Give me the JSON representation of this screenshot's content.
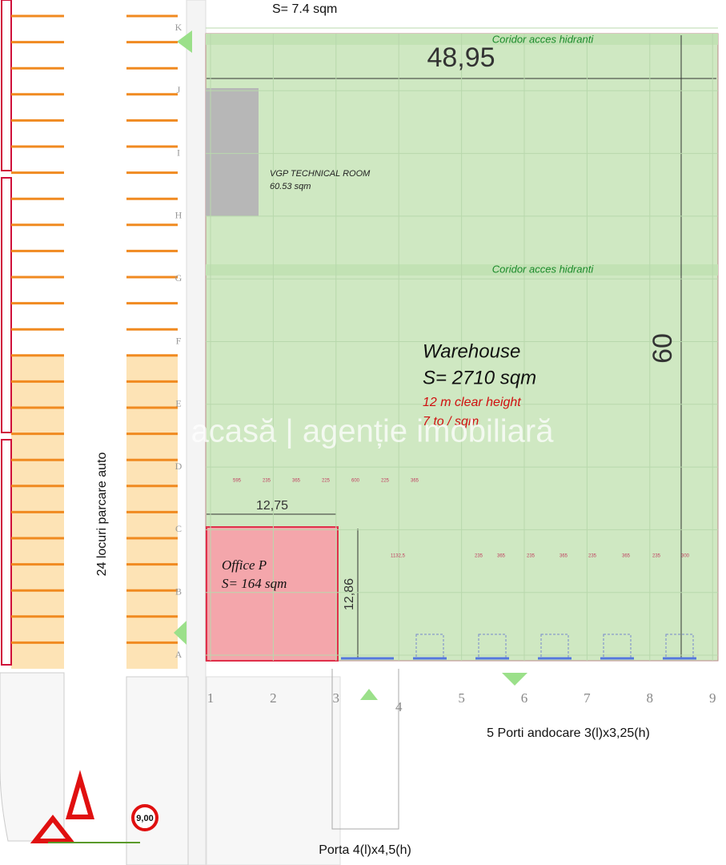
{
  "header": {
    "area_note": "S= 7.4 sqm"
  },
  "warehouse": {
    "title": "Warehouse",
    "area": "S= 2710 sqm",
    "height": "12 m clear height",
    "load": "7 to / sqm",
    "width_dim": "48,95",
    "depth_dim": "60",
    "corridors": [
      "Coridor acces hidranti",
      "Coridor acces hidranti"
    ]
  },
  "technical_room": {
    "label": "VGP TECHNICAL ROOM",
    "area": "60.53 sqm"
  },
  "office": {
    "label": "Office P",
    "area": "S= 164 sqm",
    "width_dim": "12,75",
    "depth_dim": "12,86"
  },
  "parking": {
    "label": "24 locuri parcare auto"
  },
  "docks": {
    "label": "5 Porti andocare 3(l)x3,25(h)"
  },
  "gate": {
    "label": "Porta 4(l)x4,5(h)"
  },
  "sign": "9,00",
  "grid": {
    "rows": [
      "K",
      "J",
      "I",
      "H",
      "G",
      "F",
      "E",
      "D",
      "C",
      "B",
      "A"
    ],
    "columns": [
      "1",
      "2",
      "3",
      "4",
      "5",
      "6",
      "7",
      "8",
      "9"
    ]
  },
  "dimension_rows": [
    [
      "595",
      "235",
      "365",
      "225",
      "600",
      "225",
      "365"
    ],
    [
      "1132,5",
      "235",
      "365",
      "235",
      "365",
      "235",
      "365",
      "235",
      "300"
    ]
  ],
  "watermark": "acasă | agenție imobiliară"
}
